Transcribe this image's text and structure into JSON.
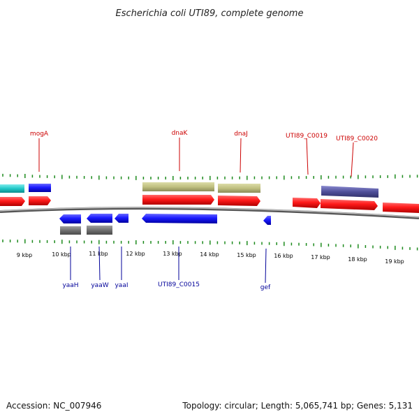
{
  "title": "Escherichia coli UTI89, complete genome",
  "colors": {
    "forward": "#ff1a1a",
    "reverse": "#1a1aff",
    "rna": "#c0c080",
    "pseudo_gray": "#707070",
    "cyan": "#20c8c8",
    "purple": "#50509a",
    "tick": "#1c8a1c",
    "backbone": "#808080",
    "label_top": "#cc0000",
    "label_bottom": "#000099"
  },
  "scale_labels": [
    {
      "id": "kbp-9",
      "text": "9 kbp"
    },
    {
      "id": "kbp-10",
      "text": "10 kbp"
    },
    {
      "id": "kbp-11",
      "text": "11 kbp"
    },
    {
      "id": "kbp-12",
      "text": "12 kbp"
    },
    {
      "id": "kbp-13",
      "text": "13 kbp"
    },
    {
      "id": "kbp-14",
      "text": "14 kbp"
    },
    {
      "id": "kbp-15",
      "text": "15 kbp"
    },
    {
      "id": "kbp-16",
      "text": "16 kbp"
    },
    {
      "id": "kbp-17",
      "text": "17 kbp"
    },
    {
      "id": "kbp-18",
      "text": "18 kbp"
    },
    {
      "id": "kbp-19",
      "text": "19 kbp"
    }
  ],
  "gene_labels_top": [
    {
      "id": "mogA",
      "text": "mogA"
    },
    {
      "id": "dnaK",
      "text": "dnaK"
    },
    {
      "id": "dnaJ",
      "text": "dnaJ"
    },
    {
      "id": "UTI89_C0019",
      "text": "UTI89_C0019"
    },
    {
      "id": "UTI89_C0020",
      "text": "UTI89_C0020"
    }
  ],
  "gene_labels_bottom": [
    {
      "id": "yaaH",
      "text": "yaaH"
    },
    {
      "id": "yaaW",
      "text": "yaaW"
    },
    {
      "id": "yaaI",
      "text": "yaaI"
    },
    {
      "id": "UTI89_C0015",
      "text": "UTI89_C0015"
    },
    {
      "id": "gef",
      "text": "gef"
    }
  ],
  "footer": {
    "accession": "Accession: NC_007946",
    "summary": "Topology: circular; Length: 5,065,741 bp; Genes: 5,131"
  }
}
